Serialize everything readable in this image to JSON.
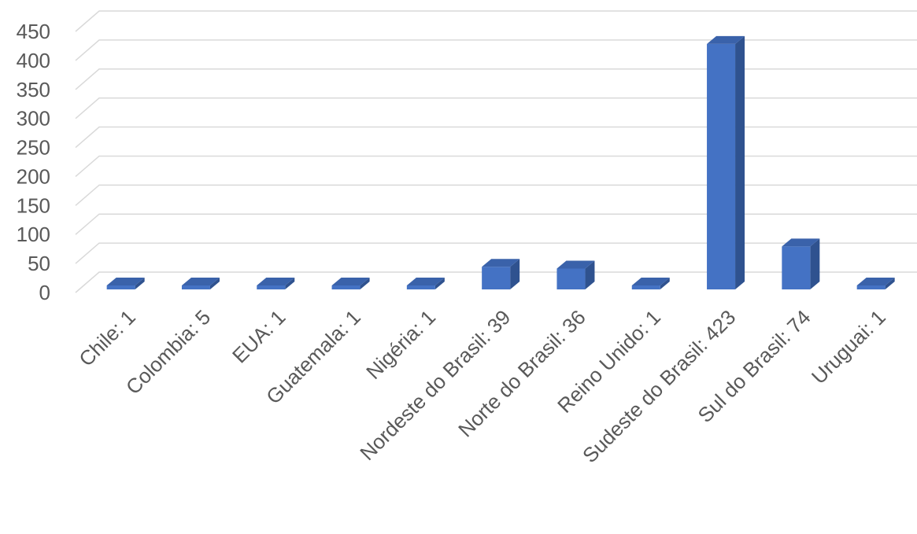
{
  "chart_data": {
    "type": "bar",
    "style": "3d-column",
    "title": "",
    "xlabel": "",
    "ylabel": "",
    "ylim": [
      0,
      450
    ],
    "y_ticks": [
      "0",
      "50",
      "100",
      "150",
      "200",
      "250",
      "300",
      "350",
      "400",
      "450"
    ],
    "grid": true,
    "legend": "none",
    "categories": [
      "Chile: 1",
      "Colombia: 5",
      "EUA: 1",
      "Guatemala: 1",
      "Nigéria: 1",
      "Nordeste do Brasil: 39",
      "Norte do Brasil: 36",
      "Reino Unido: 1",
      "Sudeste do Brasil: 423",
      "Sul do Brasil: 74",
      "Uruguai: 1"
    ],
    "values": [
      1,
      5,
      1,
      1,
      1,
      39,
      36,
      1,
      423,
      74,
      1
    ],
    "colors": {
      "front": "#4472c4",
      "side": "#2f528f",
      "top": "#3a62aa"
    }
  }
}
